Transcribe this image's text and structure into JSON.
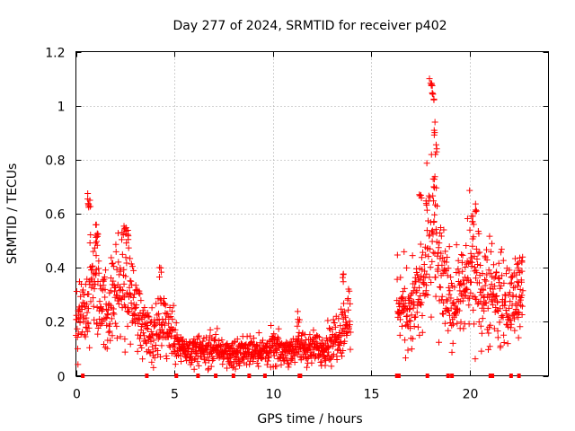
{
  "chart_data": {
    "type": "scatter",
    "title": "Day 277 of 2024, SRMTID for receiver p402",
    "xlabel": "GPS time / hours",
    "ylabel": "SRMTID / TECUs",
    "xlim": [
      0,
      24
    ],
    "ylim": [
      0,
      1.2
    ],
    "xticks": [
      0,
      5,
      10,
      15,
      20
    ],
    "xtick_labels": [
      "0",
      "5",
      "10",
      "15",
      "20"
    ],
    "yticks": [
      0,
      0.2,
      0.4,
      0.6,
      0.8,
      1,
      1.2
    ],
    "ytick_labels": [
      "0",
      "0.2",
      "0.4",
      "0.6",
      "0.8",
      "1",
      "1.2"
    ],
    "grid": true,
    "marker": "+",
    "color": "#ff0000",
    "series": [
      {
        "name": "SRMTID",
        "trend": [
          [
            0.0,
            0.18
          ],
          [
            0.5,
            0.24
          ],
          [
            0.8,
            0.36
          ],
          [
            1.2,
            0.3
          ],
          [
            1.6,
            0.24
          ],
          [
            2.1,
            0.33
          ],
          [
            2.6,
            0.34
          ],
          [
            3.1,
            0.24
          ],
          [
            3.6,
            0.18
          ],
          [
            4.0,
            0.15
          ],
          [
            4.5,
            0.2
          ],
          [
            5.0,
            0.15
          ],
          [
            5.5,
            0.1
          ],
          [
            6.0,
            0.09
          ],
          [
            6.5,
            0.1
          ],
          [
            7.0,
            0.1
          ],
          [
            7.5,
            0.09
          ],
          [
            8.0,
            0.08
          ],
          [
            8.5,
            0.09
          ],
          [
            9.0,
            0.1
          ],
          [
            9.5,
            0.09
          ],
          [
            10.0,
            0.1
          ],
          [
            10.5,
            0.09
          ],
          [
            11.0,
            0.1
          ],
          [
            11.5,
            0.11
          ],
          [
            12.0,
            0.1
          ],
          [
            12.5,
            0.1
          ],
          [
            13.0,
            0.13
          ],
          [
            13.5,
            0.18
          ],
          [
            13.9,
            0.22
          ],
          [
            16.3,
            0.28
          ],
          [
            16.8,
            0.25
          ],
          [
            17.3,
            0.28
          ],
          [
            17.7,
            0.35
          ],
          [
            18.1,
            0.55
          ],
          [
            18.4,
            0.4
          ],
          [
            18.8,
            0.3
          ],
          [
            19.3,
            0.27
          ],
          [
            19.7,
            0.3
          ],
          [
            20.0,
            0.4
          ],
          [
            20.5,
            0.32
          ],
          [
            21.0,
            0.34
          ],
          [
            21.5,
            0.28
          ],
          [
            22.0,
            0.27
          ],
          [
            22.6,
            0.28
          ]
        ],
        "peaks": [
          [
            0.6,
            0.68
          ],
          [
            0.7,
            0.66
          ],
          [
            1.0,
            0.56
          ],
          [
            1.1,
            0.53
          ],
          [
            2.5,
            0.57
          ],
          [
            2.6,
            0.55
          ],
          [
            4.3,
            0.41
          ],
          [
            13.6,
            0.39
          ],
          [
            11.3,
            0.24
          ],
          [
            17.5,
            0.69
          ],
          [
            17.8,
            0.65
          ],
          [
            18.0,
            1.11
          ],
          [
            18.1,
            1.09
          ],
          [
            18.15,
            1.05
          ],
          [
            18.2,
            0.94
          ],
          [
            18.3,
            0.86
          ],
          [
            18.2,
            0.74
          ],
          [
            20.1,
            0.6
          ],
          [
            20.3,
            0.65
          ],
          [
            22.5,
            0.43
          ],
          [
            22.7,
            0.43
          ]
        ],
        "gaps": [
          [
            13.95,
            16.3
          ]
        ]
      }
    ],
    "zero_markers_x": [
      0.35,
      3.6,
      5.1,
      6.2,
      7.1,
      8.0,
      8.8,
      9.6,
      11.35,
      11.4,
      16.3,
      16.4,
      17.85,
      18.9,
      19.1,
      21.05,
      21.15,
      22.1,
      22.5
    ]
  }
}
